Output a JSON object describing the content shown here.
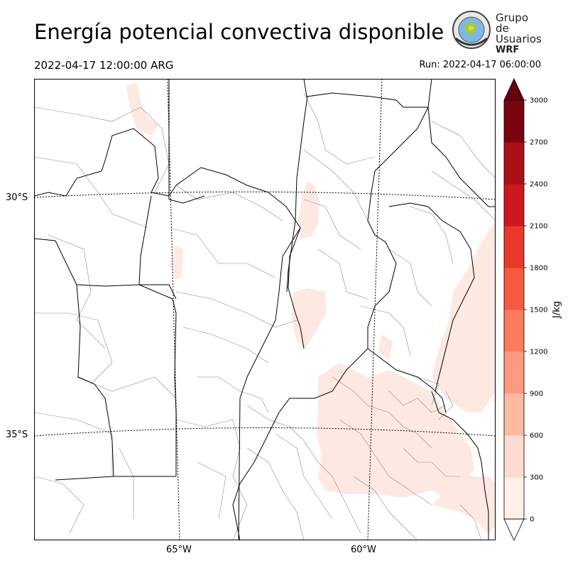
{
  "title": "Energía potencial convectiva disponible",
  "valid_time": "2022-04-17 12:00:00 ARG",
  "run_time": "Run: 2022-04-17 06:00:00",
  "logo": {
    "line1": "Grupo de",
    "line2": "Usuarios",
    "line3": "WRF"
  },
  "lat_labels": [
    "30°S",
    "35°S"
  ],
  "lon_labels": [
    "65°W",
    "60°W"
  ],
  "colorbar": {
    "label": "J/kg",
    "ticks": [
      "0",
      "300",
      "600",
      "900",
      "1200",
      "1500",
      "1800",
      "2100",
      "2400",
      "2700",
      "3000"
    ],
    "colors": [
      "#fff0e9",
      "#fcdcd2",
      "#fcbba1",
      "#fc9a7f",
      "#fb7b5c",
      "#f6593f",
      "#e8392c",
      "#cc181e",
      "#ab1016",
      "#7a0510"
    ],
    "over_color": "#67000d",
    "under_color": "#ffffff"
  },
  "colors": {
    "cape_low": "#fde9e1",
    "border": "#000000",
    "dept": "#8a8a8a"
  }
}
